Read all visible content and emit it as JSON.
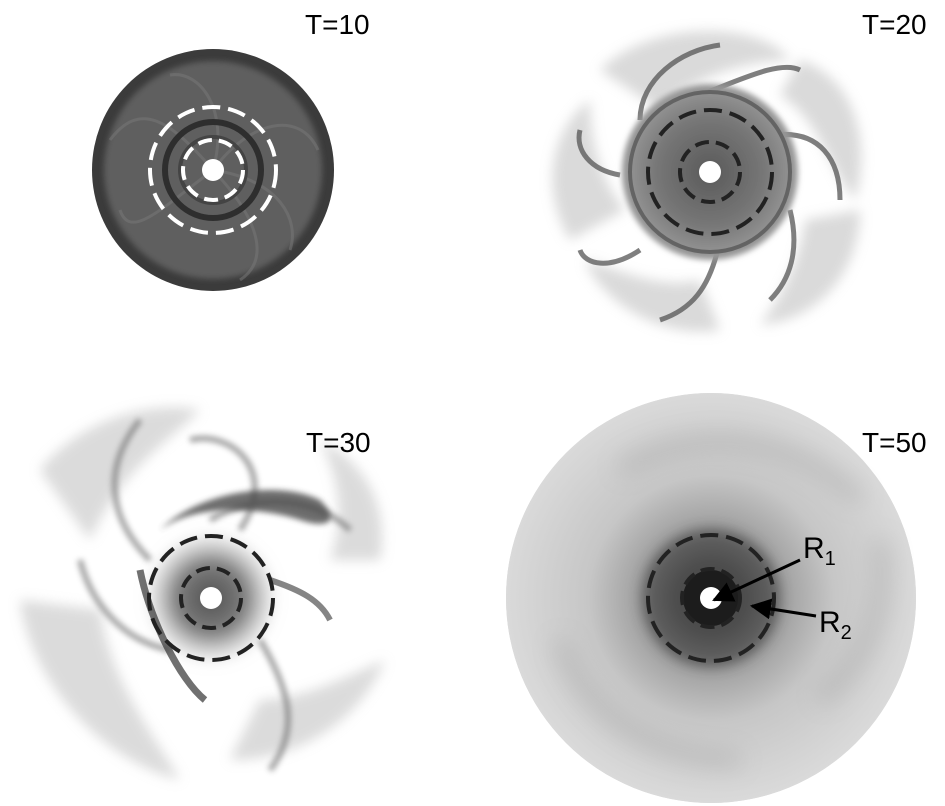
{
  "panels": [
    {
      "id": "t10",
      "label": "T=10",
      "ring_color": "#ffffff"
    },
    {
      "id": "t20",
      "label": "T=20",
      "ring_color": "#222222"
    },
    {
      "id": "t30",
      "label": "T=30",
      "ring_color": "#222222"
    },
    {
      "id": "t50",
      "label": "T=50",
      "ring_color": "#222222"
    }
  ],
  "annotations": {
    "r1": {
      "main": "R",
      "sub": "1"
    },
    "r2": {
      "main": "R",
      "sub": "2"
    }
  },
  "colors": {
    "disk_dark": "#3e3e3e",
    "gas_gray": "#8a8a8a",
    "background": "#ffffff"
  }
}
